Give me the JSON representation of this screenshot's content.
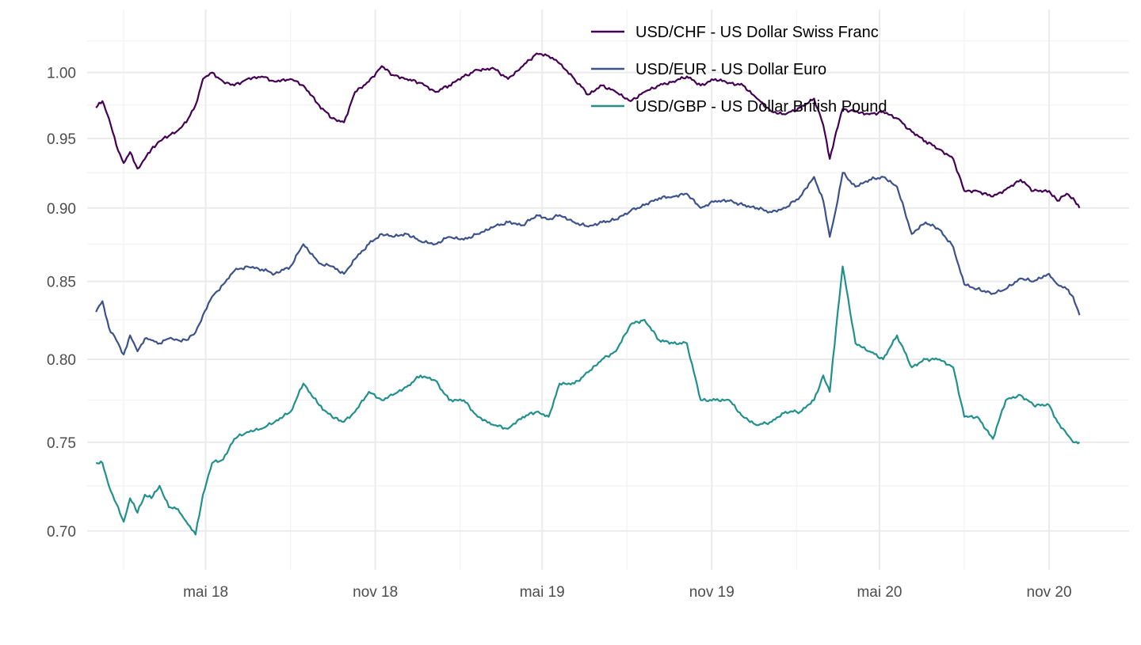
{
  "chart_data": {
    "type": "line",
    "title": "",
    "xlabel": "",
    "ylabel": "",
    "x_range": [
      "2018-01-01",
      "2021-01-01"
    ],
    "ylim": [
      0.685,
      1.04
    ],
    "y_scale": "log",
    "grid": true,
    "legend_position": "top-right",
    "x_ticks": [
      {
        "date": "2018-05-01",
        "label": "mai 18"
      },
      {
        "date": "2018-11-01",
        "label": "nov 18"
      },
      {
        "date": "2019-05-01",
        "label": "mai 19"
      },
      {
        "date": "2019-11-01",
        "label": "nov 19"
      },
      {
        "date": "2020-05-01",
        "label": "mai 20"
      },
      {
        "date": "2020-11-01",
        "label": "nov 20"
      }
    ],
    "x_minor_ticks": [
      "2018-02-01",
      "2018-08-01",
      "2019-02-01",
      "2019-08-01",
      "2020-02-01",
      "2020-08-01"
    ],
    "y_ticks": [
      {
        "value": 0.7,
        "label": "0.70"
      },
      {
        "value": 0.75,
        "label": "0.75"
      },
      {
        "value": 0.8,
        "label": "0.80"
      },
      {
        "value": 0.85,
        "label": "0.85"
      },
      {
        "value": 0.9,
        "label": "0.90"
      },
      {
        "value": 0.95,
        "label": "0.95"
      },
      {
        "value": 1.0,
        "label": "1.00"
      }
    ],
    "y_minor_ticks": [
      0.725,
      0.775,
      0.825,
      0.875,
      0.925,
      0.975,
      1.025
    ],
    "series": [
      {
        "name": "USD/CHF - US Dollar Swiss Franc",
        "color": "#440154",
        "points": [
          [
            "2018-01-02",
            0.973
          ],
          [
            "2018-01-09",
            0.978
          ],
          [
            "2018-01-16",
            0.965
          ],
          [
            "2018-01-24",
            0.945
          ],
          [
            "2018-02-01",
            0.932
          ],
          [
            "2018-02-08",
            0.94
          ],
          [
            "2018-02-16",
            0.928
          ],
          [
            "2018-02-24",
            0.935
          ],
          [
            "2018-03-03",
            0.942
          ],
          [
            "2018-03-12",
            0.948
          ],
          [
            "2018-03-22",
            0.952
          ],
          [
            "2018-04-01",
            0.956
          ],
          [
            "2018-04-10",
            0.962
          ],
          [
            "2018-04-20",
            0.975
          ],
          [
            "2018-04-28",
            0.995
          ],
          [
            "2018-05-08",
            1.0
          ],
          [
            "2018-05-20",
            0.993
          ],
          [
            "2018-06-01",
            0.99
          ],
          [
            "2018-06-15",
            0.995
          ],
          [
            "2018-07-01",
            0.997
          ],
          [
            "2018-07-15",
            0.993
          ],
          [
            "2018-08-01",
            0.995
          ],
          [
            "2018-08-15",
            0.99
          ],
          [
            "2018-09-01",
            0.975
          ],
          [
            "2018-09-15",
            0.965
          ],
          [
            "2018-09-28",
            0.962
          ],
          [
            "2018-10-10",
            0.985
          ],
          [
            "2018-10-25",
            0.993
          ],
          [
            "2018-11-08",
            1.005
          ],
          [
            "2018-11-20",
            0.998
          ],
          [
            "2018-12-05",
            0.995
          ],
          [
            "2018-12-20",
            0.992
          ],
          [
            "2019-01-05",
            0.985
          ],
          [
            "2019-01-20",
            0.99
          ],
          [
            "2019-02-05",
            0.997
          ],
          [
            "2019-02-20",
            1.002
          ],
          [
            "2019-03-10",
            1.003
          ],
          [
            "2019-03-25",
            0.995
          ],
          [
            "2019-04-10",
            1.005
          ],
          [
            "2019-04-25",
            1.015
          ],
          [
            "2019-05-08",
            1.013
          ],
          [
            "2019-05-20",
            1.007
          ],
          [
            "2019-06-05",
            0.995
          ],
          [
            "2019-06-20",
            0.983
          ],
          [
            "2019-07-05",
            0.99
          ],
          [
            "2019-07-20",
            0.985
          ],
          [
            "2019-08-05",
            0.978
          ],
          [
            "2019-08-20",
            0.985
          ],
          [
            "2019-09-05",
            0.99
          ],
          [
            "2019-09-20",
            0.993
          ],
          [
            "2019-10-05",
            0.997
          ],
          [
            "2019-10-20",
            0.99
          ],
          [
            "2019-11-05",
            0.995
          ],
          [
            "2019-11-20",
            0.992
          ],
          [
            "2019-12-05",
            0.99
          ],
          [
            "2019-12-20",
            0.98
          ],
          [
            "2020-01-05",
            0.97
          ],
          [
            "2020-01-20",
            0.968
          ],
          [
            "2020-02-05",
            0.973
          ],
          [
            "2020-02-20",
            0.98
          ],
          [
            "2020-03-01",
            0.96
          ],
          [
            "2020-03-08",
            0.935
          ],
          [
            "2020-03-15",
            0.955
          ],
          [
            "2020-03-22",
            0.972
          ],
          [
            "2020-04-05",
            0.97
          ],
          [
            "2020-04-20",
            0.968
          ],
          [
            "2020-05-05",
            0.97
          ],
          [
            "2020-05-20",
            0.965
          ],
          [
            "2020-06-05",
            0.955
          ],
          [
            "2020-06-20",
            0.948
          ],
          [
            "2020-07-05",
            0.942
          ],
          [
            "2020-07-20",
            0.935
          ],
          [
            "2020-08-01",
            0.912
          ],
          [
            "2020-08-15",
            0.912
          ],
          [
            "2020-09-01",
            0.908
          ],
          [
            "2020-09-15",
            0.913
          ],
          [
            "2020-10-01",
            0.92
          ],
          [
            "2020-10-15",
            0.912
          ],
          [
            "2020-11-01",
            0.912
          ],
          [
            "2020-11-10",
            0.905
          ],
          [
            "2020-11-20",
            0.91
          ],
          [
            "2020-11-27",
            0.907
          ],
          [
            "2020-12-04",
            0.9
          ]
        ]
      },
      {
        "name": "USD/EUR - US Dollar Euro",
        "color": "#3b528b",
        "points": [
          [
            "2018-01-02",
            0.83
          ],
          [
            "2018-01-09",
            0.837
          ],
          [
            "2018-01-16",
            0.82
          ],
          [
            "2018-01-24",
            0.812
          ],
          [
            "2018-02-01",
            0.803
          ],
          [
            "2018-02-08",
            0.815
          ],
          [
            "2018-02-16",
            0.805
          ],
          [
            "2018-02-24",
            0.813
          ],
          [
            "2018-03-03",
            0.812
          ],
          [
            "2018-03-12",
            0.81
          ],
          [
            "2018-03-22",
            0.813
          ],
          [
            "2018-04-01",
            0.812
          ],
          [
            "2018-04-10",
            0.812
          ],
          [
            "2018-04-20",
            0.817
          ],
          [
            "2018-04-28",
            0.828
          ],
          [
            "2018-05-08",
            0.84
          ],
          [
            "2018-05-20",
            0.848
          ],
          [
            "2018-06-01",
            0.857
          ],
          [
            "2018-06-15",
            0.86
          ],
          [
            "2018-07-01",
            0.858
          ],
          [
            "2018-07-15",
            0.855
          ],
          [
            "2018-08-01",
            0.86
          ],
          [
            "2018-08-15",
            0.875
          ],
          [
            "2018-09-01",
            0.862
          ],
          [
            "2018-09-15",
            0.86
          ],
          [
            "2018-09-28",
            0.855
          ],
          [
            "2018-10-10",
            0.865
          ],
          [
            "2018-10-25",
            0.875
          ],
          [
            "2018-11-08",
            0.882
          ],
          [
            "2018-11-20",
            0.88
          ],
          [
            "2018-12-05",
            0.882
          ],
          [
            "2018-12-20",
            0.877
          ],
          [
            "2019-01-05",
            0.875
          ],
          [
            "2019-01-20",
            0.88
          ],
          [
            "2019-02-05",
            0.878
          ],
          [
            "2019-02-20",
            0.882
          ],
          [
            "2019-03-10",
            0.887
          ],
          [
            "2019-03-25",
            0.89
          ],
          [
            "2019-04-10",
            0.888
          ],
          [
            "2019-04-25",
            0.895
          ],
          [
            "2019-05-08",
            0.892
          ],
          [
            "2019-05-20",
            0.895
          ],
          [
            "2019-06-05",
            0.89
          ],
          [
            "2019-06-20",
            0.887
          ],
          [
            "2019-07-05",
            0.89
          ],
          [
            "2019-07-20",
            0.892
          ],
          [
            "2019-08-05",
            0.898
          ],
          [
            "2019-08-20",
            0.902
          ],
          [
            "2019-09-05",
            0.907
          ],
          [
            "2019-09-20",
            0.908
          ],
          [
            "2019-10-05",
            0.91
          ],
          [
            "2019-10-20",
            0.9
          ],
          [
            "2019-11-05",
            0.905
          ],
          [
            "2019-11-20",
            0.905
          ],
          [
            "2019-12-05",
            0.902
          ],
          [
            "2019-12-20",
            0.9
          ],
          [
            "2020-01-05",
            0.897
          ],
          [
            "2020-01-20",
            0.9
          ],
          [
            "2020-02-05",
            0.908
          ],
          [
            "2020-02-20",
            0.922
          ],
          [
            "2020-03-01",
            0.905
          ],
          [
            "2020-03-08",
            0.88
          ],
          [
            "2020-03-15",
            0.9
          ],
          [
            "2020-03-22",
            0.925
          ],
          [
            "2020-04-05",
            0.915
          ],
          [
            "2020-04-20",
            0.92
          ],
          [
            "2020-05-05",
            0.922
          ],
          [
            "2020-05-20",
            0.915
          ],
          [
            "2020-06-05",
            0.882
          ],
          [
            "2020-06-20",
            0.89
          ],
          [
            "2020-07-05",
            0.885
          ],
          [
            "2020-07-20",
            0.873
          ],
          [
            "2020-08-01",
            0.848
          ],
          [
            "2020-08-15",
            0.845
          ],
          [
            "2020-09-01",
            0.842
          ],
          [
            "2020-09-15",
            0.845
          ],
          [
            "2020-10-01",
            0.852
          ],
          [
            "2020-10-15",
            0.85
          ],
          [
            "2020-11-01",
            0.855
          ],
          [
            "2020-11-10",
            0.848
          ],
          [
            "2020-11-20",
            0.845
          ],
          [
            "2020-11-27",
            0.84
          ],
          [
            "2020-12-04",
            0.828
          ]
        ]
      },
      {
        "name": "USD/GBP - US Dollar British Pound",
        "color": "#21908c",
        "points": [
          [
            "2018-01-02",
            0.738
          ],
          [
            "2018-01-09",
            0.738
          ],
          [
            "2018-01-16",
            0.725
          ],
          [
            "2018-01-24",
            0.715
          ],
          [
            "2018-02-01",
            0.705
          ],
          [
            "2018-02-08",
            0.718
          ],
          [
            "2018-02-16",
            0.71
          ],
          [
            "2018-02-24",
            0.72
          ],
          [
            "2018-03-03",
            0.718
          ],
          [
            "2018-03-12",
            0.725
          ],
          [
            "2018-03-22",
            0.713
          ],
          [
            "2018-04-01",
            0.712
          ],
          [
            "2018-04-10",
            0.705
          ],
          [
            "2018-04-20",
            0.698
          ],
          [
            "2018-04-28",
            0.72
          ],
          [
            "2018-05-08",
            0.738
          ],
          [
            "2018-05-20",
            0.74
          ],
          [
            "2018-06-01",
            0.752
          ],
          [
            "2018-06-15",
            0.756
          ],
          [
            "2018-07-01",
            0.758
          ],
          [
            "2018-07-15",
            0.762
          ],
          [
            "2018-08-01",
            0.768
          ],
          [
            "2018-08-15",
            0.785
          ],
          [
            "2018-09-01",
            0.772
          ],
          [
            "2018-09-15",
            0.765
          ],
          [
            "2018-09-28",
            0.762
          ],
          [
            "2018-10-10",
            0.768
          ],
          [
            "2018-10-25",
            0.78
          ],
          [
            "2018-11-08",
            0.775
          ],
          [
            "2018-11-20",
            0.778
          ],
          [
            "2018-12-05",
            0.783
          ],
          [
            "2018-12-20",
            0.79
          ],
          [
            "2019-01-05",
            0.787
          ],
          [
            "2019-01-20",
            0.775
          ],
          [
            "2019-02-05",
            0.775
          ],
          [
            "2019-02-20",
            0.765
          ],
          [
            "2019-03-10",
            0.76
          ],
          [
            "2019-03-25",
            0.758
          ],
          [
            "2019-04-10",
            0.765
          ],
          [
            "2019-04-25",
            0.768
          ],
          [
            "2019-05-08",
            0.765
          ],
          [
            "2019-05-20",
            0.785
          ],
          [
            "2019-06-05",
            0.785
          ],
          [
            "2019-06-20",
            0.792
          ],
          [
            "2019-07-05",
            0.8
          ],
          [
            "2019-07-20",
            0.805
          ],
          [
            "2019-08-05",
            0.822
          ],
          [
            "2019-08-20",
            0.825
          ],
          [
            "2019-09-05",
            0.812
          ],
          [
            "2019-09-20",
            0.81
          ],
          [
            "2019-10-05",
            0.81
          ],
          [
            "2019-10-20",
            0.775
          ],
          [
            "2019-11-05",
            0.775
          ],
          [
            "2019-11-20",
            0.775
          ],
          [
            "2019-12-05",
            0.765
          ],
          [
            "2019-12-20",
            0.76
          ],
          [
            "2020-01-05",
            0.762
          ],
          [
            "2020-01-20",
            0.768
          ],
          [
            "2020-02-05",
            0.768
          ],
          [
            "2020-02-20",
            0.775
          ],
          [
            "2020-03-01",
            0.79
          ],
          [
            "2020-03-08",
            0.78
          ],
          [
            "2020-03-15",
            0.82
          ],
          [
            "2020-03-22",
            0.86
          ],
          [
            "2020-04-05",
            0.81
          ],
          [
            "2020-04-20",
            0.805
          ],
          [
            "2020-05-05",
            0.8
          ],
          [
            "2020-05-20",
            0.815
          ],
          [
            "2020-06-05",
            0.795
          ],
          [
            "2020-06-20",
            0.8
          ],
          [
            "2020-07-05",
            0.8
          ],
          [
            "2020-07-20",
            0.795
          ],
          [
            "2020-08-01",
            0.765
          ],
          [
            "2020-08-15",
            0.765
          ],
          [
            "2020-09-01",
            0.752
          ],
          [
            "2020-09-15",
            0.775
          ],
          [
            "2020-10-01",
            0.778
          ],
          [
            "2020-10-15",
            0.772
          ],
          [
            "2020-11-01",
            0.772
          ],
          [
            "2020-11-10",
            0.762
          ],
          [
            "2020-11-20",
            0.755
          ],
          [
            "2020-11-27",
            0.75
          ],
          [
            "2020-12-04",
            0.75
          ]
        ]
      }
    ]
  }
}
